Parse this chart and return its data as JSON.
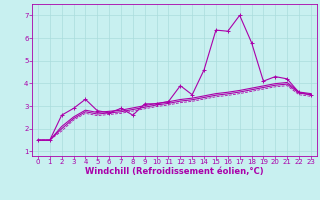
{
  "title": "",
  "xlabel": "Windchill (Refroidissement éolien,°C)",
  "ylabel": "",
  "background_color": "#c8f0f0",
  "grid_color": "#aadddd",
  "grid_color2": "#bbcccc",
  "line_color": "#aa00aa",
  "spine_color": "#8888aa",
  "xlim": [
    -0.5,
    23.5
  ],
  "ylim": [
    0.8,
    7.5
  ],
  "xticks": [
    0,
    1,
    2,
    3,
    4,
    5,
    6,
    7,
    8,
    9,
    10,
    11,
    12,
    13,
    14,
    15,
    16,
    17,
    18,
    19,
    20,
    21,
    22,
    23
  ],
  "yticks": [
    1,
    2,
    3,
    4,
    5,
    6,
    7
  ],
  "series": {
    "line1": {
      "x": [
        0,
        1,
        2,
        3,
        4,
        5,
        6,
        7,
        8,
        9,
        10,
        11,
        12,
        13,
        14,
        15,
        16,
        17,
        18,
        19,
        20,
        21,
        22,
        23
      ],
      "y": [
        1.5,
        1.5,
        2.6,
        2.9,
        3.3,
        2.8,
        2.7,
        2.9,
        2.6,
        3.1,
        3.1,
        3.2,
        3.9,
        3.5,
        4.6,
        6.35,
        6.3,
        7.0,
        5.8,
        4.1,
        4.3,
        4.2,
        3.6,
        3.5
      ]
    },
    "line2": {
      "x": [
        0,
        1,
        2,
        3,
        4,
        5,
        6,
        7,
        8,
        9,
        10,
        11,
        12,
        13,
        14,
        15,
        16,
        17,
        18,
        19,
        20,
        21,
        22,
        23
      ],
      "y": [
        1.5,
        1.5,
        2.0,
        2.45,
        2.75,
        2.65,
        2.7,
        2.75,
        2.85,
        2.95,
        3.05,
        3.12,
        3.22,
        3.28,
        3.38,
        3.48,
        3.54,
        3.62,
        3.72,
        3.82,
        3.92,
        3.97,
        3.57,
        3.5
      ]
    },
    "line3": {
      "x": [
        0,
        1,
        2,
        3,
        4,
        5,
        6,
        7,
        8,
        9,
        10,
        11,
        12,
        13,
        14,
        15,
        16,
        17,
        18,
        19,
        20,
        21,
        22,
        23
      ],
      "y": [
        1.5,
        1.5,
        2.1,
        2.52,
        2.82,
        2.72,
        2.77,
        2.82,
        2.92,
        3.02,
        3.12,
        3.19,
        3.29,
        3.35,
        3.45,
        3.55,
        3.61,
        3.69,
        3.79,
        3.89,
        3.99,
        4.04,
        3.62,
        3.55
      ]
    },
    "line4": {
      "x": [
        0,
        1,
        2,
        3,
        4,
        5,
        6,
        7,
        8,
        9,
        10,
        11,
        12,
        13,
        14,
        15,
        16,
        17,
        18,
        19,
        20,
        21,
        22,
        23
      ],
      "y": [
        1.5,
        1.5,
        1.9,
        2.38,
        2.68,
        2.58,
        2.63,
        2.68,
        2.78,
        2.88,
        2.98,
        3.05,
        3.15,
        3.21,
        3.31,
        3.41,
        3.47,
        3.55,
        3.65,
        3.75,
        3.85,
        3.9,
        3.5,
        3.43
      ]
    }
  },
  "xlabel_fontsize": 6,
  "tick_fontsize": 5,
  "linewidth": 0.8
}
